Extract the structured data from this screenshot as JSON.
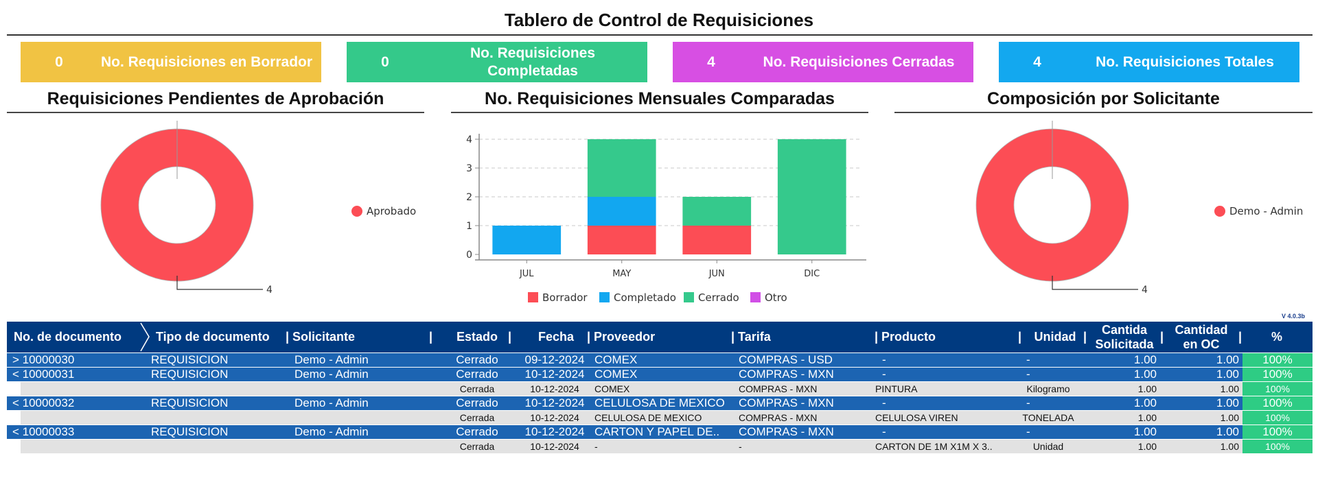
{
  "title": "Tablero de Control de Requisiciones",
  "colors": {
    "yellow": "#f1c343",
    "green": "#34c98a",
    "magenta": "#d74fe3",
    "sky": "#13a8ef",
    "red": "#fc4d55",
    "blue": "#12a7f0",
    "teal": "#35c98c",
    "purple": "#d14fe6",
    "header_navy": "#003a80",
    "row_blue": "#1c64b2",
    "pct_green": "#2ecc84"
  },
  "kpis": [
    {
      "value": "0",
      "label": "No. Requisiciones en Borrador",
      "color": "#f1c343"
    },
    {
      "value": "0",
      "label": "No. Requisiciones Completadas",
      "color": "#34c98a"
    },
    {
      "value": "4",
      "label": "No. Requisiciones Cerradas",
      "color": "#d74fe3"
    },
    {
      "value": "4",
      "label": "No. Requisiciones Totales",
      "color": "#13a8ef"
    }
  ],
  "panels": {
    "pending": {
      "title": "Requisiciones Pendientes de Aprobación"
    },
    "monthly": {
      "title": "No. Requisiciones Mensuales Comparadas"
    },
    "composition": {
      "title": "Composición por Solicitante"
    }
  },
  "chart_data": [
    {
      "type": "pie",
      "variant": "donut",
      "labels": [
        "Aprobado"
      ],
      "values": [
        4
      ],
      "value_labels": [
        "4"
      ],
      "colors": [
        "#fc4d55"
      ],
      "legend": "right"
    },
    {
      "type": "bar",
      "stacked": true,
      "categories": [
        "JUL",
        "MAY",
        "JUN",
        "DIC"
      ],
      "series": [
        {
          "name": "Borrador",
          "color": "#fc4d55",
          "values": [
            0,
            1,
            1,
            0
          ]
        },
        {
          "name": "Completado",
          "color": "#12a7f0",
          "values": [
            1,
            1,
            0,
            0
          ]
        },
        {
          "name": "Cerrado",
          "color": "#35c98c",
          "values": [
            0,
            2,
            1,
            4
          ]
        },
        {
          "name": "Otro",
          "color": "#d14fe6",
          "values": [
            0,
            0,
            0,
            0
          ]
        }
      ],
      "ylim": [
        0,
        4
      ],
      "yticks": [
        "0",
        "1",
        "2",
        "3",
        "4"
      ],
      "grid": true,
      "legend": "bottom"
    },
    {
      "type": "pie",
      "variant": "donut",
      "labels": [
        "Demo - Admin"
      ],
      "values": [
        4
      ],
      "value_labels": [
        "4"
      ],
      "colors": [
        "#fc4d55"
      ],
      "legend": "right"
    }
  ],
  "version": "V  4.0.3b",
  "table": {
    "headers": {
      "doc_no": "No. de documento",
      "doc_type": "Tipo de documento",
      "requester": "| Solicitante",
      "sep": "|",
      "status": "Estado",
      "sep2": "|",
      "date": "Fecha",
      "supplier": "| Proveedor",
      "rate": "| Tarifa",
      "product": "| Producto",
      "sep3": "|",
      "unit": "Unidad",
      "sep4": "|",
      "qty_req": "Cantida Solicitada",
      "sep5": "|",
      "qty_oc": "Cantidad en OC",
      "sep6": "|",
      "pct": "%"
    },
    "rows": [
      {
        "kind": "parent",
        "doc": "> 10000030",
        "type": "REQUISICION",
        "requester": "Demo - Admin",
        "status": "Cerrado",
        "date": "09-12-2024",
        "supplier": "COMEX",
        "rate": "COMPRAS - USD",
        "product": "-",
        "unit": "-",
        "qty_req": "1.00",
        "qty_oc": "1.00",
        "pct": "100%"
      },
      {
        "kind": "parent",
        "doc": "< 10000031",
        "type": "REQUISICION",
        "requester": "Demo - Admin",
        "status": "Cerrado",
        "date": "10-12-2024",
        "supplier": "COMEX",
        "rate": "COMPRAS - MXN",
        "product": "-",
        "unit": "-",
        "qty_req": "1.00",
        "qty_oc": "1.00",
        "pct": "100%"
      },
      {
        "kind": "child",
        "status": "Cerrada",
        "date": "10-12-2024",
        "supplier": "COMEX",
        "rate": "COMPRAS - MXN",
        "product": "PINTURA",
        "unit": "Kilogramo",
        "qty_req": "1.00",
        "qty_oc": "1.00",
        "pct": "100%"
      },
      {
        "kind": "parent",
        "doc": "< 10000032",
        "type": "REQUISICION",
        "requester": "Demo - Admin",
        "status": "Cerrado",
        "date": "10-12-2024",
        "supplier": "CELULOSA DE MEXICO",
        "rate": "COMPRAS - MXN",
        "product": "-",
        "unit": "-",
        "qty_req": "1.00",
        "qty_oc": "1.00",
        "pct": "100%"
      },
      {
        "kind": "child",
        "status": "Cerrada",
        "date": "10-12-2024",
        "supplier": "CELULOSA DE MEXICO",
        "rate": "COMPRAS - MXN",
        "product": "CELULOSA VIREN",
        "unit": "TONELADA",
        "qty_req": "1.00",
        "qty_oc": "1.00",
        "pct": "100%"
      },
      {
        "kind": "parent",
        "doc": "< 10000033",
        "type": "REQUISICION",
        "requester": "Demo - Admin",
        "status": "Cerrado",
        "date": "10-12-2024",
        "supplier": "CARTON Y PAPEL DE..",
        "rate": "COMPRAS - MXN",
        "product": "-",
        "unit": "-",
        "qty_req": "1.00",
        "qty_oc": "1.00",
        "pct": "100%"
      },
      {
        "kind": "child",
        "status": "Cerrada",
        "date": "10-12-2024",
        "supplier": "-",
        "rate": "-",
        "product": "CARTON DE 1M X1M X 3..",
        "unit": "Unidad",
        "qty_req": "1.00",
        "qty_oc": "1.00",
        "pct": "100%"
      }
    ]
  }
}
